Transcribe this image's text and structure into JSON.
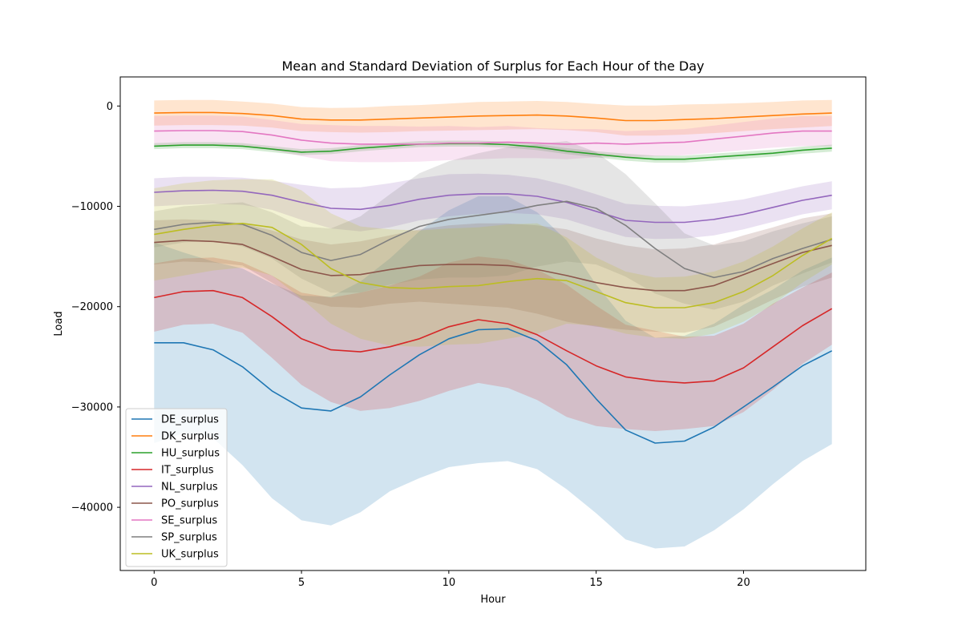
{
  "chart_data": {
    "type": "line",
    "title": "Mean and Standard Deviation of Surplus for Each Hour of the Day",
    "xlabel": "Hour",
    "ylabel": "Load",
    "xlim": [
      -1.15,
      24.15
    ],
    "ylim": [
      -46300,
      2900
    ],
    "x_ticks": [
      0,
      5,
      10,
      15,
      20
    ],
    "y_ticks": [
      0,
      -10000,
      -20000,
      -30000,
      -40000
    ],
    "y_tick_labels": [
      "0",
      "−10000",
      "−20000",
      "−30000",
      "−40000"
    ],
    "legend_position": "lower-left",
    "grid": false,
    "x": [
      0,
      1,
      2,
      3,
      4,
      5,
      6,
      7,
      8,
      9,
      10,
      11,
      12,
      13,
      14,
      15,
      16,
      17,
      18,
      19,
      20,
      21,
      22,
      23
    ],
    "series": [
      {
        "name": "DE_surplus",
        "color": "#1f77b4",
        "mean": [
          -23600,
          -23600,
          -24300,
          -26000,
          -28400,
          -30100,
          -30400,
          -29000,
          -26800,
          -24800,
          -23200,
          -22300,
          -22200,
          -23400,
          -25800,
          -29200,
          -32300,
          -33600,
          -33400,
          -32000,
          -30000,
          -28000,
          -25900,
          -24400
        ],
        "std": [
          10000,
          9000,
          8800,
          9800,
          10700,
          11200,
          11400,
          11500,
          11600,
          12300,
          12800,
          13300,
          13200,
          12800,
          12400,
          11400,
          10900,
          10500,
          10500,
          10300,
          10200,
          9700,
          9500,
          9300
        ]
      },
      {
        "name": "DK_surplus",
        "color": "#ff7f0e",
        "mean": [
          -700,
          -650,
          -650,
          -750,
          -950,
          -1300,
          -1400,
          -1400,
          -1300,
          -1200,
          -1100,
          -1000,
          -950,
          -900,
          -1000,
          -1200,
          -1450,
          -1450,
          -1350,
          -1250,
          -1100,
          -950,
          -800,
          -700
        ],
        "std": [
          1250,
          1250,
          1250,
          1200,
          1200,
          1200,
          1200,
          1250,
          1300,
          1300,
          1350,
          1400,
          1400,
          1400,
          1400,
          1400,
          1500,
          1500,
          1500,
          1450,
          1400,
          1350,
          1350,
          1300
        ]
      },
      {
        "name": "HU_surplus",
        "color": "#2ca02c",
        "mean": [
          -4000,
          -3900,
          -3900,
          -4000,
          -4300,
          -4600,
          -4500,
          -4200,
          -4000,
          -3800,
          -3750,
          -3750,
          -3850,
          -4100,
          -4500,
          -4800,
          -5100,
          -5300,
          -5300,
          -5100,
          -4900,
          -4700,
          -4400,
          -4200
        ],
        "std": [
          300,
          300,
          300,
          300,
          300,
          300,
          300,
          300,
          300,
          300,
          300,
          300,
          300,
          300,
          300,
          300,
          350,
          350,
          350,
          350,
          350,
          350,
          350,
          350
        ]
      },
      {
        "name": "IT_surplus",
        "color": "#d62728",
        "mean": [
          -19100,
          -18500,
          -18400,
          -19100,
          -21000,
          -23200,
          -24300,
          -24500,
          -24000,
          -23200,
          -22000,
          -21300,
          -21700,
          -22800,
          -24400,
          -25900,
          -27000,
          -27400,
          -27600,
          -27400,
          -26100,
          -24000,
          -21900,
          -20200
        ],
        "std": [
          3400,
          3300,
          3300,
          3500,
          4100,
          4600,
          5200,
          5900,
          6100,
          6200,
          6400,
          6300,
          6400,
          6500,
          6600,
          6000,
          5200,
          5000,
          4600,
          4500,
          4400,
          4300,
          3800,
          3600
        ]
      },
      {
        "name": "NL_surplus",
        "color": "#9467bd",
        "mean": [
          -8600,
          -8450,
          -8400,
          -8500,
          -8900,
          -9600,
          -10200,
          -10300,
          -9900,
          -9300,
          -8900,
          -8750,
          -8750,
          -9000,
          -9600,
          -10500,
          -11400,
          -11600,
          -11600,
          -11300,
          -10800,
          -10100,
          -9400,
          -8900
        ],
        "std": [
          1400,
          1400,
          1350,
          1350,
          1450,
          1750,
          2000,
          2200,
          2200,
          2100,
          2100,
          2000,
          1900,
          1800,
          1700,
          1700,
          1650,
          1650,
          1600,
          1600,
          1500,
          1450,
          1400,
          1400
        ]
      },
      {
        "name": "PO_surplus",
        "color": "#8c564b",
        "mean": [
          -13600,
          -13400,
          -13500,
          -13800,
          -15000,
          -16300,
          -16900,
          -16800,
          -16300,
          -15900,
          -15800,
          -15800,
          -15900,
          -16300,
          -16900,
          -17600,
          -18100,
          -18400,
          -18400,
          -17900,
          -16800,
          -15700,
          -14600,
          -13900
        ],
        "std": [
          2200,
          2100,
          2100,
          2100,
          2600,
          3000,
          3100,
          3300,
          3400,
          3600,
          3900,
          4100,
          4200,
          4400,
          4600,
          4400,
          4200,
          4100,
          4200,
          4100,
          3900,
          3600,
          3400,
          3200
        ]
      },
      {
        "name": "SE_surplus",
        "color": "#e377c2",
        "mean": [
          -2500,
          -2450,
          -2450,
          -2550,
          -2900,
          -3400,
          -3700,
          -3800,
          -3800,
          -3800,
          -3700,
          -3700,
          -3600,
          -3700,
          -3800,
          -3700,
          -3800,
          -3700,
          -3600,
          -3300,
          -3000,
          -2700,
          -2500,
          -2500
        ],
        "std": [
          1500,
          1500,
          1500,
          1500,
          1500,
          1600,
          1800,
          1800,
          1800,
          1750,
          1700,
          1600,
          1600,
          1500,
          1500,
          1400,
          1300,
          1300,
          1300,
          1350,
          1400,
          1450,
          1500,
          1500
        ]
      },
      {
        "name": "SP_surplus",
        "color": "#7f7f7f",
        "mean": [
          -12300,
          -11800,
          -11600,
          -11800,
          -12900,
          -14600,
          -15400,
          -14800,
          -13300,
          -12000,
          -11300,
          -10900,
          -10500,
          -9900,
          -9500,
          -10200,
          -11900,
          -14200,
          -16200,
          -17100,
          -16500,
          -15200,
          -14200,
          -13300
        ],
        "std": [
          1800,
          1800,
          1800,
          2200,
          2300,
          2600,
          3200,
          3800,
          4500,
          5300,
          5800,
          6200,
          6400,
          6100,
          6000,
          5600,
          5100,
          4500,
          3500,
          3200,
          3000,
          2700,
          2500,
          2300
        ]
      },
      {
        "name": "UK_surplus",
        "color": "#bcbd22",
        "mean": [
          -12800,
          -12300,
          -11900,
          -11700,
          -12100,
          -13800,
          -16200,
          -17600,
          -18100,
          -18200,
          -18000,
          -17900,
          -17500,
          -17200,
          -17400,
          -18500,
          -19600,
          -20100,
          -20100,
          -19600,
          -18500,
          -16900,
          -14900,
          -13200
        ],
        "std": [
          4600,
          4600,
          4500,
          4400,
          4800,
          5400,
          5500,
          5600,
          5800,
          5800,
          5800,
          5800,
          5700,
          5500,
          4300,
          3400,
          3100,
          3000,
          3100,
          3100,
          3000,
          2900,
          2700,
          2600
        ]
      }
    ]
  }
}
